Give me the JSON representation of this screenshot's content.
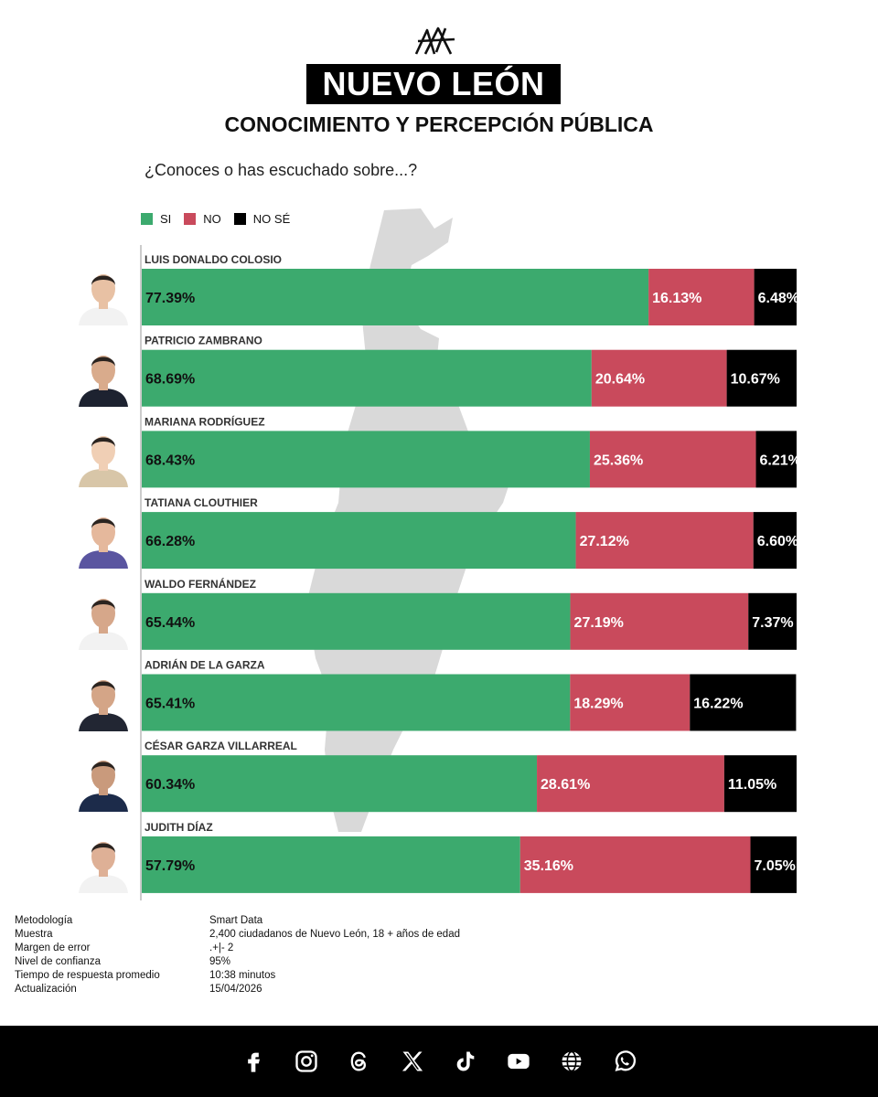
{
  "header": {
    "title": "NUEVO LEÓN",
    "subtitle": "CONOCIMIENTO Y PERCEPCIÓN PÚBLICA",
    "question": "¿Conoces o has escuchado sobre...?"
  },
  "legend": [
    {
      "label": "SI",
      "color": "#3caa6e"
    },
    {
      "label": "NO",
      "color": "#c94a5c"
    },
    {
      "label": "NO SÉ",
      "color": "#000000"
    }
  ],
  "chart_data": {
    "type": "bar",
    "orientation": "horizontal-stacked",
    "xlim": [
      0,
      100
    ],
    "categories": [
      "LUIS DONALDO COLOSIO",
      "PATRICIO ZAMBRANO",
      "MARIANA RODRÍGUEZ",
      "TATIANA CLOUTHIER",
      "WALDO FERNÁNDEZ",
      "ADRIÁN DE LA GARZA",
      "CÉSAR GARZA VILLARREAL",
      "JUDITH DÍAZ"
    ],
    "series": [
      {
        "name": "SI",
        "color": "#3caa6e",
        "values": [
          77.39,
          68.69,
          68.43,
          66.28,
          65.44,
          65.41,
          60.34,
          57.79
        ],
        "labels": [
          "77.39%",
          "68.69%",
          "68.43%",
          "66.28%",
          "65.44%",
          "65.41%",
          "60.34%",
          "57.79%"
        ]
      },
      {
        "name": "NO",
        "color": "#c94a5c",
        "values": [
          16.13,
          20.64,
          25.36,
          27.12,
          27.19,
          18.29,
          28.61,
          35.16
        ],
        "labels": [
          "16.13%",
          "20.64%",
          "25.36%",
          "27.12%",
          "27.19%",
          "18.29%",
          "28.61%",
          "35.16%"
        ]
      },
      {
        "name": "NO SÉ",
        "color": "#000000",
        "values": [
          6.48,
          10.67,
          6.21,
          6.6,
          7.37,
          16.22,
          11.05,
          7.05
        ],
        "labels": [
          "6.48%",
          "10.67%",
          "6.21%",
          "6.60%",
          "7.37%",
          "16.22%",
          "11.05%",
          "7.05%"
        ]
      }
    ],
    "legend_position": "top-left",
    "grid": false
  },
  "methodology": [
    {
      "key": "Metodología",
      "value": "Smart Data"
    },
    {
      "key": "Muestra",
      "value": "2,400 ciudadanos de Nuevo León, 18 + años de edad"
    },
    {
      "key": "Margen de error",
      "value": ".+|- 2"
    },
    {
      "key": "Nivel de confianza",
      "value": "95%"
    },
    {
      "key": "Tiempo de respuesta promedio",
      "value": "10:38 minutos"
    },
    {
      "key": "Actualización",
      "value": "15/04/2026"
    }
  ],
  "footer": {
    "icons": [
      "facebook-icon",
      "instagram-icon",
      "threads-icon",
      "x-icon",
      "tiktok-icon",
      "youtube-icon",
      "globe-icon",
      "whatsapp-icon"
    ]
  }
}
